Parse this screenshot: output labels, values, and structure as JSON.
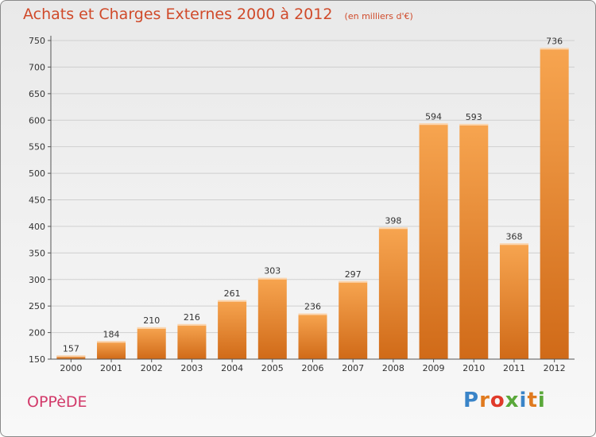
{
  "header": {
    "title": "Achats et Charges Externes 2000 à 2012",
    "subtitle": "(en milliers d'€)"
  },
  "footer": {
    "city": "OPPèDE",
    "brand": "Proxiti",
    "brand_colors": [
      "#3a84c8",
      "#e07a1f",
      "#e03a2a",
      "#5aa83a",
      "#3a84c8",
      "#e07a1f",
      "#5aa83a"
    ]
  },
  "colors": {
    "bar_top": "#f7a550",
    "bar_bottom": "#d06a18",
    "title": "#d04a2a",
    "grid": "#cfcfcf"
  },
  "chart_data": {
    "type": "bar",
    "title": "Achats et Charges Externes 2000 à 2012",
    "categories": [
      "2000",
      "2001",
      "2002",
      "2003",
      "2004",
      "2005",
      "2006",
      "2007",
      "2008",
      "2009",
      "2010",
      "2011",
      "2012"
    ],
    "values": [
      157,
      184,
      210,
      216,
      261,
      303,
      236,
      297,
      398,
      594,
      593,
      368,
      736
    ],
    "ylim": [
      150,
      750
    ],
    "yticks": [
      150,
      200,
      250,
      300,
      350,
      400,
      450,
      500,
      550,
      600,
      650,
      700,
      750
    ],
    "grid": true
  }
}
